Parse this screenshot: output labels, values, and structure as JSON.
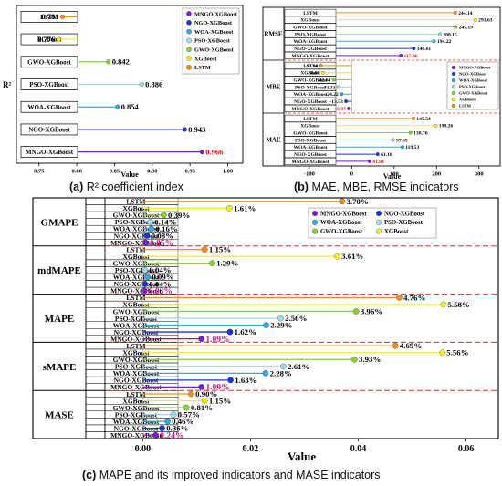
{
  "series_colors": {
    "MNGO-XGBoost": "#7a1fc8",
    "NGO-XGBoost": "#2233cc",
    "WOA-XGBoost": "#3aa6e0",
    "PSO-XGBoost": "#9fd8ee",
    "GWO-XGBoost": "#8ccf3a",
    "XGBoost": "#f2ec2a",
    "LSTM": "#e8902a"
  },
  "captions": {
    "a_letter": "(a)",
    "a_text": "R² coefficient index",
    "b_letter": "(b)",
    "b_text": "MAE, MBE, RMSE indicators",
    "c_letter": "(c)",
    "c_text": "MAPE and its improved indicators and MASE indicators"
  },
  "chart_data": [
    {
      "id": "a",
      "type": "bar",
      "orientation": "horizontal",
      "panel_label": "R²",
      "categories": [
        "LSTM",
        "XGBoost",
        "GWO-XGBoost",
        "PSO-XGBoost",
        "WOA-XGBoost",
        "NGO-XGBoost",
        "MNGO-XGBoost"
      ],
      "values": [
        0.781,
        0.776,
        0.842,
        0.886,
        0.854,
        0.943,
        0.966
      ],
      "value_labels": [
        "0.781",
        "0.776",
        "0.842",
        "0.886",
        "0.854",
        "0.943",
        "0.966"
      ],
      "xlabel": "Value",
      "xlim": [
        0.72,
        1.02
      ],
      "xticks": [
        0.75,
        0.8,
        0.85,
        0.9,
        0.95,
        1.0
      ],
      "xtick_labels": [
        "0.75",
        "0.80",
        "0.85",
        "0.90",
        "0.95",
        "1.00"
      ],
      "legend": [
        "MNGO-XGBoost",
        "NGO-XGBoost",
        "WOA-XGBoost",
        "PSO-XGBoost",
        "GWO-XGBoost",
        "XGBoost",
        "LSTM"
      ],
      "legend_position": "top-right"
    },
    {
      "id": "b",
      "type": "bar",
      "orientation": "horizontal",
      "categories": [
        "LSTM",
        "XGBoost",
        "GWO-XGBoost",
        "PSO-XGBoost",
        "WOA-XGBoost",
        "NGO-XGBoost",
        "MNGO-XGBoost"
      ],
      "groups": [
        {
          "name": "RMSE",
          "values": [
            244.14,
            291.63,
            245.19,
            208.15,
            194.22,
            146.61,
            115.96
          ],
          "value_labels": [
            "244.14",
            "291.63",
            "245.19",
            "208.15",
            "194.22",
            "146.61",
            "115.96"
          ]
        },
        {
          "name": "MBE",
          "values": [
            -72.64,
            -68.09,
            -42.64,
            -31.31,
            -24.22,
            -13.53,
            -6.97
          ],
          "value_labels": [
            "-72.64",
            "-68.09",
            "-42.64",
            "-31.31",
            "-24.22",
            "-13.53",
            "-6.97"
          ]
        },
        {
          "name": "MAE",
          "values": [
            145.54,
            198.26,
            138.76,
            97.65,
            119.53,
            61.18,
            41.84
          ],
          "value_labels": [
            "145.54",
            "198.26",
            "138.76",
            "97.65",
            "119.53",
            "61.18",
            "41.84"
          ]
        }
      ],
      "xlabel": "Value",
      "xlim": [
        -160,
        350
      ],
      "xticks": [
        -100,
        0,
        100,
        200,
        300
      ],
      "xtick_labels": [
        "-100",
        "0",
        "100",
        "200",
        "300"
      ],
      "legend": [
        "MNGO-XGBoost",
        "NGO-XGBoost",
        "WOA-XGBoost",
        "PSO-XGBoost",
        "GWO-XGBoost",
        "XGBoost",
        "LSTM"
      ],
      "legend_position": "inside MBE group, right"
    },
    {
      "id": "c",
      "type": "bar",
      "orientation": "horizontal",
      "categories": [
        "LSTM",
        "XGBoost",
        "GWO-XGBoost",
        "PSO-XGBoost",
        "WOA-XGBoost",
        "NGO-XGBoost",
        "MNGO-XGBoost"
      ],
      "groups": [
        {
          "name": "GMAPE",
          "values": [
            0.037,
            0.0161,
            0.0039,
            0.0014,
            0.0016,
            0.0008,
            0.0005
          ],
          "value_labels": [
            "3.70%",
            "1.61%",
            "0.39%",
            "0.14%",
            "0.16%",
            "0.08%",
            "0.05%"
          ]
        },
        {
          "name": "mdMAPE",
          "values": [
            0.0115,
            0.0361,
            0.0129,
            0.0004,
            0.0009,
            0.0004,
            0.0003
          ],
          "value_labels": [
            "1.15%",
            "3.61%",
            "1.29%",
            "0.04%",
            "0.09%",
            "0.04%",
            "0.03%"
          ]
        },
        {
          "name": "MAPE",
          "values": [
            0.0476,
            0.0558,
            0.0396,
            0.0256,
            0.0229,
            0.0162,
            0.0109
          ],
          "value_labels": [
            "4.76%",
            "5.58%",
            "3.96%",
            "2.56%",
            "2.29%",
            "1.62%",
            "1.09%"
          ]
        },
        {
          "name": "sMAPE",
          "values": [
            0.0469,
            0.0556,
            0.0393,
            0.0261,
            0.0228,
            0.0163,
            0.0109
          ],
          "value_labels": [
            "4.69%",
            "5.56%",
            "3.93%",
            "2.61%",
            "2.28%",
            "1.63%",
            "1.09%"
          ]
        },
        {
          "name": "MASE",
          "values": [
            0.009,
            0.0115,
            0.0081,
            0.0057,
            0.0046,
            0.0036,
            0.0024
          ],
          "value_labels": [
            "0.90%",
            "1.15%",
            "0.81%",
            "0.57%",
            "0.46%",
            "0.36%",
            "0.24%"
          ]
        }
      ],
      "xlabel": "Value",
      "xlim": [
        -0.007,
        0.066
      ],
      "xticks": [
        0.0,
        0.02,
        0.04,
        0.06
      ],
      "xtick_labels": [
        "0.00",
        "0.02",
        "0.04",
        "0.06"
      ],
      "legend": [
        "MNGO-XGBoost",
        "NGO-XGBoost",
        "WOA-XGBoost",
        "PSO-XGBoost",
        "GWO-XGBoost",
        "XGBoost"
      ],
      "legend_position": "inside GMAPE group, right"
    }
  ]
}
